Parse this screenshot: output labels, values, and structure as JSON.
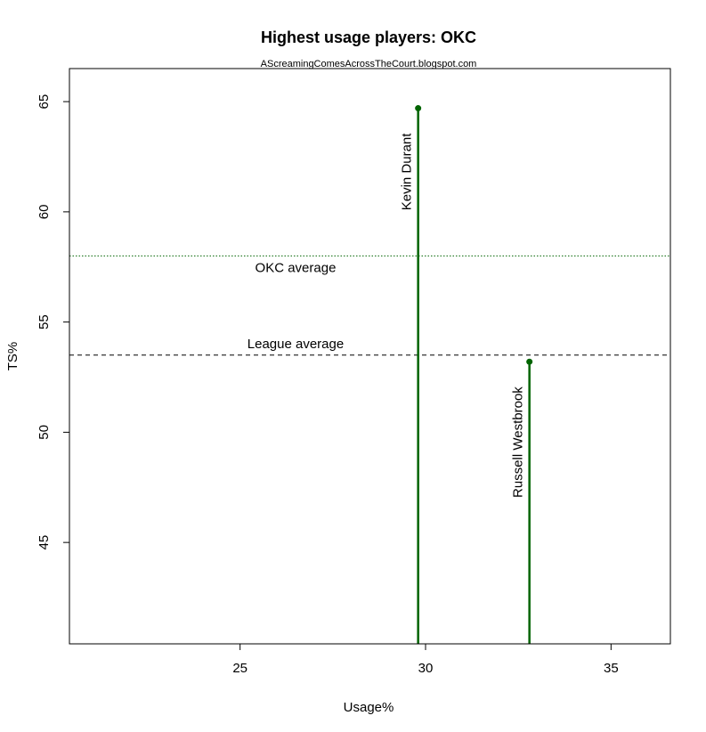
{
  "chart_data": {
    "type": "scatter",
    "title": "Highest usage players: OKC",
    "subtitle": "AScreamingComesAcrossTheCourt.blogspot.com",
    "xlabel": "Usage%",
    "ylabel": "TS%",
    "xlim": [
      20.4,
      36.6
    ],
    "ylim": [
      40.4,
      66.5
    ],
    "x_ticks": [
      25,
      30,
      35
    ],
    "y_ticks": [
      45,
      50,
      55,
      60,
      65
    ],
    "points": [
      {
        "label": "Kevin Durant",
        "x": 29.8,
        "y": 64.7
      },
      {
        "label": "Russell Westbrook",
        "x": 32.8,
        "y": 53.2
      }
    ],
    "reference_lines": [
      {
        "label": "OKC average",
        "y": 58.0,
        "style": "dotted",
        "color": "#006400"
      },
      {
        "label": "League average",
        "y": 53.5,
        "style": "dashed",
        "color": "#000000"
      }
    ],
    "point_color": "#006400",
    "grid": false,
    "legend": "none"
  }
}
